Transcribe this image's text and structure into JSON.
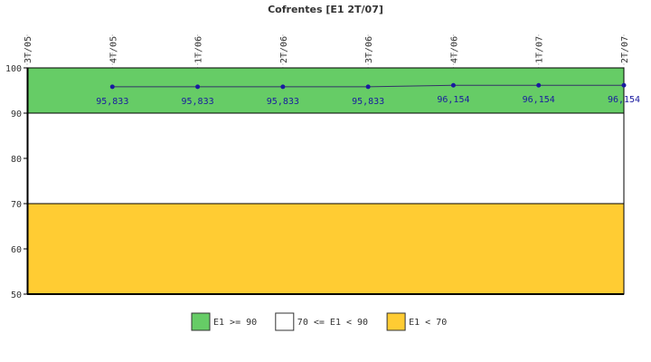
{
  "chart_data": {
    "type": "line",
    "title": "Cofrentes [E1 2T/07]",
    "categories": [
      "3T/05",
      "4T/05",
      "1T/06",
      "2T/06",
      "3T/06",
      "4T/06",
      "1T/07",
      "2T/07"
    ],
    "series": [
      {
        "values": [
          null,
          95.833,
          95.833,
          95.833,
          95.833,
          96.154,
          96.154,
          96.154
        ],
        "labels": [
          "",
          "95,833",
          "95,833",
          "95,833",
          "95,833",
          "96,154",
          "96,154",
          "96,154"
        ],
        "color": "#1a1aa0"
      }
    ],
    "ylim": [
      50,
      100
    ],
    "yticks": [
      50,
      60,
      70,
      80,
      90,
      100
    ],
    "bands": [
      {
        "from": 90,
        "to": 100,
        "color": "#66cc66",
        "label": "E1 >= 90"
      },
      {
        "from": 70,
        "to": 90,
        "color": "#ffffff",
        "label": "70 <= E1 < 90"
      },
      {
        "from": 50,
        "to": 70,
        "color": "#ffcc33",
        "label": "E1 < 70"
      }
    ],
    "legend_position": "bottom"
  }
}
